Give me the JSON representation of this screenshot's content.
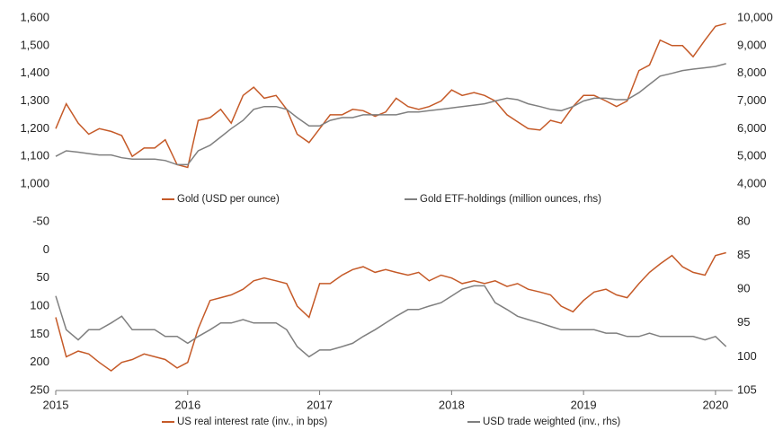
{
  "chart_data": [
    {
      "type": "line",
      "x": [
        2015,
        2015.08,
        2015.17,
        2015.25,
        2015.33,
        2015.42,
        2015.5,
        2015.58,
        2015.67,
        2015.75,
        2015.83,
        2015.92,
        2016,
        2016.08,
        2016.17,
        2016.25,
        2016.33,
        2016.42,
        2016.5,
        2016.58,
        2016.67,
        2016.75,
        2016.83,
        2016.92,
        2017,
        2017.08,
        2017.17,
        2017.25,
        2017.33,
        2017.42,
        2017.5,
        2017.58,
        2017.67,
        2017.75,
        2017.83,
        2017.92,
        2018,
        2018.08,
        2018.17,
        2018.25,
        2018.33,
        2018.42,
        2018.5,
        2018.58,
        2018.67,
        2018.75,
        2018.83,
        2018.92,
        2019,
        2019.08,
        2019.17,
        2019.25,
        2019.33,
        2019.42,
        2019.5,
        2019.58,
        2019.67,
        2019.75,
        2019.83,
        2019.92,
        2020,
        2020.08
      ],
      "xlim": [
        2015,
        2020.13
      ],
      "ylim": [
        1000,
        1600
      ],
      "yticks": [
        {
          "value": 1000,
          "label": "1,000"
        },
        {
          "value": 1100,
          "label": "1,100"
        },
        {
          "value": 1200,
          "label": "1,200"
        },
        {
          "value": 1300,
          "label": "1,300"
        },
        {
          "value": 1400,
          "label": "1,400"
        },
        {
          "value": 1500,
          "label": "1,500"
        },
        {
          "value": 1600,
          "label": "1,600"
        }
      ],
      "y2lim": [
        4000,
        10000
      ],
      "y2ticks": [
        {
          "value": 4000,
          "label": "4,000"
        },
        {
          "value": 5000,
          "label": "5,000"
        },
        {
          "value": 6000,
          "label": "6,000"
        },
        {
          "value": 7000,
          "label": "7,000"
        },
        {
          "value": 8000,
          "label": "8,000"
        },
        {
          "value": 9000,
          "label": "9,000"
        },
        {
          "value": 10000,
          "label": "10,000"
        }
      ],
      "legend": "bottom",
      "series": [
        {
          "name": "Gold (USD per ounce)",
          "color": "#c55a28",
          "values": [
            1200,
            1290,
            1220,
            1180,
            1200,
            1190,
            1175,
            1100,
            1130,
            1130,
            1160,
            1070,
            1060,
            1230,
            1240,
            1270,
            1220,
            1320,
            1350,
            1310,
            1320,
            1270,
            1180,
            1150,
            1200,
            1250,
            1250,
            1270,
            1265,
            1245,
            1260,
            1310,
            1280,
            1270,
            1280,
            1300,
            1340,
            1320,
            1330,
            1320,
            1300,
            1250,
            1225,
            1200,
            1195,
            1230,
            1220,
            1280,
            1320,
            1320,
            1300,
            1280,
            1300,
            1410,
            1430,
            1520,
            1500,
            1500,
            1460,
            1520,
            1570,
            1580
          ]
        },
        {
          "name": "Gold ETF-holdings (million ounces, rhs)",
          "color": "#7f7f7f",
          "axis": "y2",
          "values": [
            5000,
            5200,
            5150,
            5100,
            5050,
            5050,
            4950,
            4900,
            4900,
            4900,
            4850,
            4700,
            4700,
            5200,
            5400,
            5700,
            6000,
            6300,
            6700,
            6800,
            6800,
            6700,
            6400,
            6100,
            6100,
            6300,
            6400,
            6400,
            6500,
            6500,
            6500,
            6500,
            6600,
            6600,
            6650,
            6700,
            6750,
            6800,
            6850,
            6900,
            7000,
            7100,
            7050,
            6900,
            6800,
            6700,
            6650,
            6800,
            7000,
            7100,
            7100,
            7050,
            7050,
            7300,
            7600,
            7900,
            8000,
            8100,
            8150,
            8200,
            8250,
            8350
          ]
        }
      ]
    },
    {
      "type": "line",
      "x": [
        2015,
        2015.08,
        2015.17,
        2015.25,
        2015.33,
        2015.42,
        2015.5,
        2015.58,
        2015.67,
        2015.75,
        2015.83,
        2015.92,
        2016,
        2016.08,
        2016.17,
        2016.25,
        2016.33,
        2016.42,
        2016.5,
        2016.58,
        2016.67,
        2016.75,
        2016.83,
        2016.92,
        2017,
        2017.08,
        2017.17,
        2017.25,
        2017.33,
        2017.42,
        2017.5,
        2017.58,
        2017.67,
        2017.75,
        2017.83,
        2017.92,
        2018,
        2018.08,
        2018.17,
        2018.25,
        2018.33,
        2018.42,
        2018.5,
        2018.58,
        2018.67,
        2018.75,
        2018.83,
        2018.92,
        2019,
        2019.08,
        2019.17,
        2019.25,
        2019.33,
        2019.42,
        2019.5,
        2019.58,
        2019.67,
        2019.75,
        2019.83,
        2019.92,
        2020,
        2020.08
      ],
      "xlim": [
        2015,
        2020.13
      ],
      "xticks": [
        2015,
        2016,
        2017,
        2018,
        2019,
        2020
      ],
      "ylim": [
        -50,
        250
      ],
      "y_inverted": true,
      "yticks": [
        -50,
        0,
        50,
        100,
        150,
        200,
        250
      ],
      "y2lim": [
        80,
        105
      ],
      "y2_inverted": true,
      "y2ticks": [
        80,
        85,
        90,
        95,
        100,
        105
      ],
      "legend": "bottom",
      "series": [
        {
          "name": "US real interest rate (inv., in bps)",
          "color": "#c55a28",
          "values": [
            120,
            190,
            180,
            185,
            200,
            215,
            200,
            195,
            185,
            190,
            195,
            210,
            200,
            140,
            90,
            85,
            80,
            70,
            55,
            50,
            55,
            60,
            100,
            120,
            60,
            60,
            45,
            35,
            30,
            40,
            35,
            40,
            45,
            40,
            55,
            45,
            50,
            60,
            55,
            60,
            55,
            65,
            60,
            70,
            75,
            80,
            100,
            110,
            90,
            75,
            70,
            80,
            85,
            60,
            40,
            25,
            10,
            30,
            40,
            45,
            10,
            5
          ]
        },
        {
          "name": "USD trade weighted (inv., rhs)",
          "color": "#7f7f7f",
          "axis": "y2",
          "values": [
            91,
            96,
            97.5,
            96,
            96,
            95,
            94,
            96,
            96,
            96,
            97,
            97,
            98,
            97,
            96,
            95,
            95,
            94.5,
            95,
            95,
            95,
            96,
            98.5,
            100,
            99,
            99,
            98.5,
            98,
            97,
            96,
            95,
            94,
            93,
            93,
            92.5,
            92,
            91,
            90,
            89.5,
            89.5,
            92,
            93,
            94,
            94.5,
            95,
            95.5,
            96,
            96,
            96,
            96,
            96.5,
            96.5,
            97,
            97,
            96.5,
            97,
            97,
            97,
            97,
            97.5,
            97,
            98.5
          ]
        }
      ]
    }
  ]
}
